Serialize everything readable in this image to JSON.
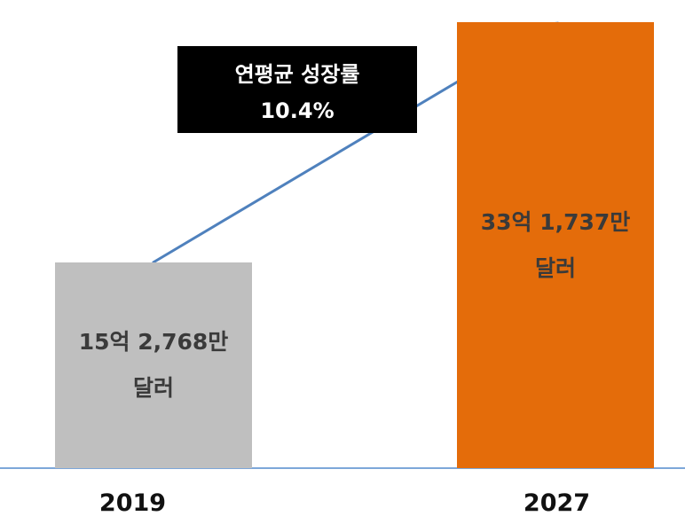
{
  "chart_data": {
    "type": "bar",
    "categories": [
      "2019",
      "2027"
    ],
    "values": [
      1527680000,
      3317370000
    ],
    "value_labels": [
      "15억 2,768만 달러",
      "33억 1,737만 달러"
    ],
    "colors": [
      "#bfbfbf",
      "#e46c0a"
    ],
    "annotation": [
      "연평균 성장률",
      "10.4%"
    ]
  }
}
